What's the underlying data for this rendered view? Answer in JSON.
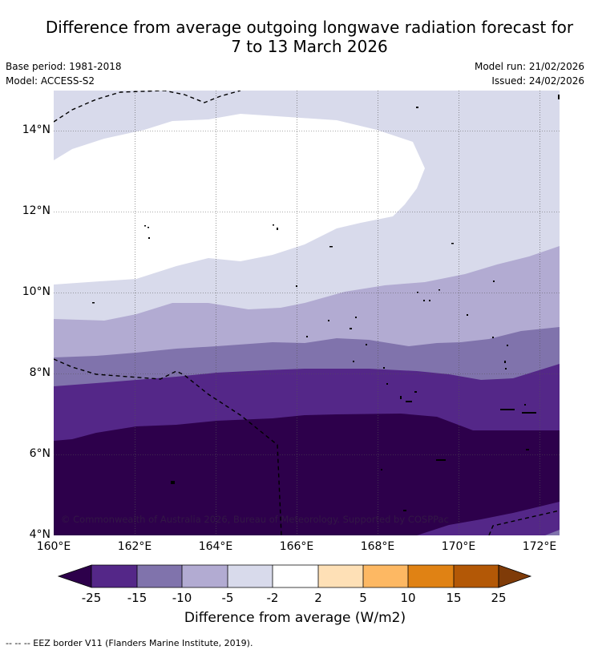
{
  "header": {
    "title_line1": "Difference from average outgoing longwave radiation forecast for",
    "title_line2": "7 to 13 March 2026",
    "base_period": "Base period: 1981-2018",
    "model": "Model: ACCESS-S2",
    "model_run": "Model run: 21/02/2026",
    "issued": "Issued: 24/02/2026"
  },
  "map": {
    "extent": {
      "lon_min": 160,
      "lon_max": 172.5,
      "lat_min": 4,
      "lat_max": 15
    },
    "lat_labels": [
      "14°N",
      "12°N",
      "10°N",
      "8°N",
      "6°N",
      "4°N"
    ],
    "lon_labels": [
      "160°E",
      "162°E",
      "164°E",
      "166°E",
      "168°E",
      "170°E",
      "172°E"
    ],
    "copyright": "© Commonwealth of Australia 2026, Bureau of Meteorology. Supported by COSPPac",
    "colors": {
      "below_m25": "#2d004b",
      "m25_m15": "#542788",
      "m15_m10": "#8073ac",
      "m10_m5": "#b2abd2",
      "m5_m2": "#d8daeb",
      "m2_2": "#ffffff",
      "p2_5": "#fee0b6",
      "p5_10": "#fdb863",
      "p10_15": "#e08214",
      "p15_25": "#b35806",
      "above_25": "#7f3b08"
    }
  },
  "colorbar": {
    "ticks": [
      "-25",
      "-15",
      "-10",
      "-5",
      "-2",
      "2",
      "5",
      "10",
      "15",
      "25"
    ],
    "title": "Difference from average (W/m2)"
  },
  "footnote": "--  --  -- EEZ border V11 (Flanders Marine Institute, 2019)."
}
